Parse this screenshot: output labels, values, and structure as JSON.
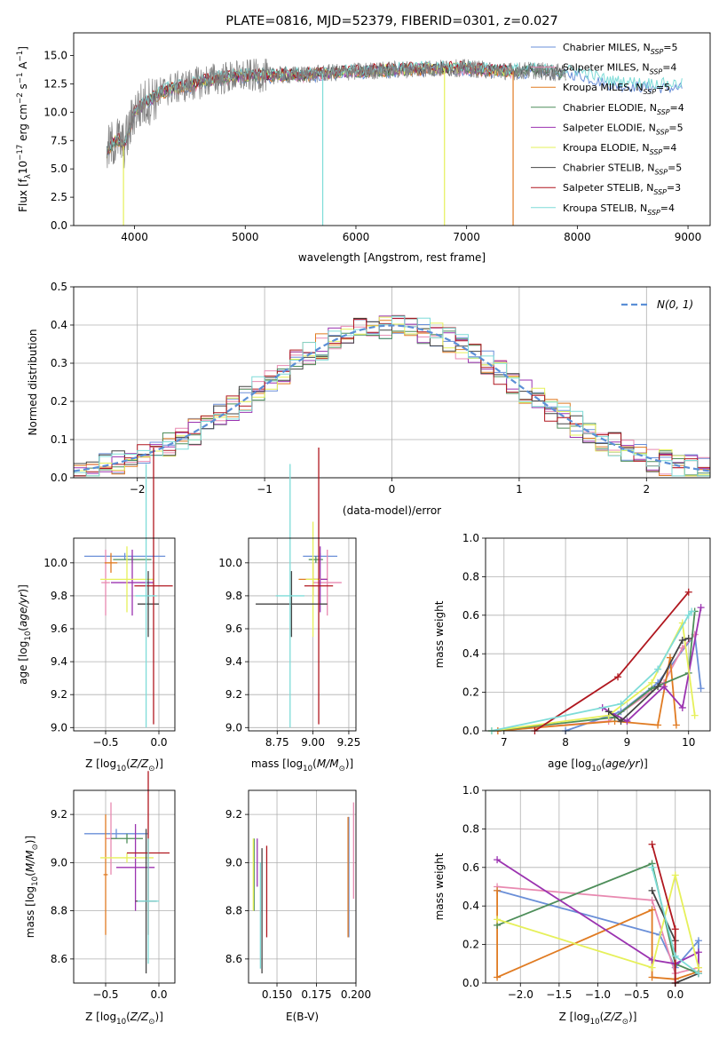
{
  "figure": {
    "title": "PLATE=0816, MJD=52379, FIBERID=0301, z=0.027"
  },
  "colors": {
    "Chabrier MILES": "#6a8fd8",
    "Salpeter MILES": "#e889b0",
    "Kroupa MILES": "#e07b22",
    "Chabrier ELODIE": "#4e8e5a",
    "Salpeter ELODIE": "#9b33b0",
    "Kroupa ELODIE": "#e6f05a",
    "Chabrier STELIB": "#444444",
    "Salpeter STELIB": "#b0171f",
    "Kroupa STELIB": "#7edcd8",
    "grey_data": "#808080",
    "normal_curve": "#5b8fd6"
  },
  "chart_data": [
    {
      "id": "spectrum",
      "type": "line",
      "title": "PLATE=0816, MJD=52379, FIBERID=0301, z=0.027",
      "xlabel": "wavelength [Angstrom, rest frame]",
      "ylabel": "Flux [f_λ 10^-17 erg cm^-2 s^-1 A^-1]",
      "xlim": [
        3450,
        9200
      ],
      "ylim": [
        0,
        17
      ],
      "xticks": [
        4000,
        5000,
        6000,
        7000,
        8000,
        9000
      ],
      "yticks": [
        0.0,
        2.5,
        5.0,
        7.5,
        10.0,
        12.5,
        15.0
      ],
      "legend_position": "upper right",
      "legend": [
        {
          "name": "Chabrier MILES",
          "nssp": 5
        },
        {
          "name": "Salpeter MILES",
          "nssp": 4
        },
        {
          "name": "Kroupa MILES",
          "nssp": 5
        },
        {
          "name": "Chabrier ELODIE",
          "nssp": 4
        },
        {
          "name": "Salpeter ELODIE",
          "nssp": 5
        },
        {
          "name": "Kroupa ELODIE",
          "nssp": 4
        },
        {
          "name": "Chabrier STELIB",
          "nssp": 5
        },
        {
          "name": "Salpeter STELIB",
          "nssp": 3
        },
        {
          "name": "Kroupa STELIB",
          "nssp": 4
        }
      ],
      "continuum": {
        "x": [
          3750,
          3800,
          3850,
          3900,
          3950,
          4000,
          4100,
          4200,
          4300,
          4500,
          4700,
          5000,
          5500,
          6000,
          6500,
          7000,
          7200,
          7400,
          7600,
          7800,
          8000,
          8300,
          8600,
          8900
        ],
        "y": [
          6.5,
          7.2,
          7.6,
          7.0,
          8.3,
          10.1,
          10.8,
          11.5,
          12.0,
          12.4,
          12.9,
          13.2,
          13.3,
          13.6,
          13.8,
          13.9,
          13.7,
          13.6,
          13.7,
          13.5,
          13.5,
          12.6,
          12.4,
          12.3
        ]
      },
      "noisy_range": [
        3750,
        7900
      ],
      "spikes": [
        {
          "x": 3900,
          "y_low": 0.0
        },
        {
          "x": 5700,
          "y_low": 0.0
        },
        {
          "x": 6800,
          "y_low": 0.0
        },
        {
          "x": 7420,
          "y_low": 0.0
        }
      ]
    },
    {
      "id": "residuals",
      "type": "histogram",
      "xlabel": "(data-model)/error",
      "ylabel": "Normed distribution",
      "xlim": [
        -2.5,
        2.5
      ],
      "ylim": [
        0,
        0.5
      ],
      "xticks": [
        -2,
        -1,
        0,
        1,
        2
      ],
      "yticks": [
        0.0,
        0.1,
        0.2,
        0.3,
        0.4,
        0.5
      ],
      "bin_width": 0.1,
      "bins_start": -2.5,
      "normal_curve_label": "N(0, 1)",
      "legend_position": "upper right"
    },
    {
      "id": "age_vs_Z",
      "type": "scatter",
      "xlabel": "Z [log10(Z/Z⊙)]",
      "ylabel": "age  [log10(age/yr)]",
      "xlim": [
        -0.8,
        0.15
      ],
      "ylim": [
        8.98,
        10.15
      ],
      "xticks": [
        -0.5,
        0.0
      ],
      "yticks": [
        9.0,
        9.2,
        9.4,
        9.6,
        9.8,
        10.0
      ],
      "points": [
        {
          "model": "Chabrier MILES",
          "x": -0.32,
          "xerr": 0.38,
          "y": 10.04,
          "yerr": 0.02
        },
        {
          "model": "Salpeter MILES",
          "x": -0.5,
          "xerr": 0.04,
          "y": 9.88,
          "yerr": 0.2
        },
        {
          "model": "Kroupa MILES",
          "x": -0.45,
          "xerr": 0.06,
          "y": 10.0,
          "yerr": 0.06
        },
        {
          "model": "Chabrier ELODIE",
          "x": -0.25,
          "xerr": 0.18,
          "y": 10.02,
          "yerr": 0.02
        },
        {
          "model": "Salpeter ELODIE",
          "x": -0.25,
          "xerr": 0.2,
          "y": 9.88,
          "yerr": 0.2
        },
        {
          "model": "Kroupa ELODIE",
          "x": -0.3,
          "xerr": 0.25,
          "y": 9.9,
          "yerr": 0.2
        },
        {
          "model": "Chabrier STELIB",
          "x": -0.1,
          "xerr": 0.1,
          "y": 9.75,
          "yerr": 0.2
        },
        {
          "model": "Salpeter STELIB",
          "x": -0.05,
          "xerr": 0.18,
          "y": 9.86,
          "yerr": 0.84
        },
        {
          "model": "Kroupa STELIB",
          "x": -0.12,
          "xerr": 0.1,
          "y": 9.8,
          "yerr": 0.8
        }
      ]
    },
    {
      "id": "age_vs_mass",
      "type": "scatter",
      "xlabel": "mass [log10(M/M⊙)]",
      "xlim": [
        8.55,
        9.3
      ],
      "ylim": [
        8.98,
        10.15
      ],
      "xticks": [
        8.75,
        9.0,
        9.25
      ],
      "yticks": [
        9.0,
        9.2,
        9.4,
        9.6,
        9.8,
        10.0
      ],
      "points": [
        {
          "model": "Chabrier MILES",
          "x": 9.05,
          "xerr": 0.12,
          "y": 10.04,
          "yerr": 0.02
        },
        {
          "model": "Salpeter MILES",
          "x": 9.1,
          "xerr": 0.1,
          "y": 9.88,
          "yerr": 0.2
        },
        {
          "model": "Kroupa MILES",
          "x": 9.0,
          "xerr": 0.1,
          "y": 9.9,
          "yerr": 0.1
        },
        {
          "model": "Chabrier ELODIE",
          "x": 9.02,
          "xerr": 0.05,
          "y": 10.02,
          "yerr": 0.02
        },
        {
          "model": "Salpeter ELODIE",
          "x": 9.05,
          "xerr": 0.05,
          "y": 9.9,
          "yerr": 0.2
        },
        {
          "model": "Kroupa ELODIE",
          "x": 9.0,
          "xerr": 0.05,
          "y": 9.9,
          "yerr": 0.35
        },
        {
          "model": "Chabrier STELIB",
          "x": 8.85,
          "xerr": 0.25,
          "y": 9.75,
          "yerr": 0.2
        },
        {
          "model": "Salpeter STELIB",
          "x": 9.04,
          "xerr": 0.1,
          "y": 9.86,
          "yerr": 0.84
        },
        {
          "model": "Kroupa STELIB",
          "x": 8.84,
          "xerr": 0.1,
          "y": 9.8,
          "yerr": 0.8
        }
      ]
    },
    {
      "id": "massweight_vs_age",
      "type": "line",
      "xlabel": "age  [log10(age/yr)]",
      "ylabel": "mass weight",
      "xlim": [
        6.7,
        10.35
      ],
      "ylim": [
        0,
        1.0
      ],
      "xticks": [
        7,
        8,
        9,
        10
      ],
      "yticks": [
        0.0,
        0.2,
        0.4,
        0.6,
        0.8,
        1.0
      ],
      "series": [
        {
          "model": "Chabrier MILES",
          "x": [
            8.0,
            8.9,
            9.5,
            10.1,
            10.2
          ],
          "y": [
            0.0,
            0.1,
            0.25,
            0.5,
            0.22
          ]
        },
        {
          "model": "Salpeter MILES",
          "x": [
            6.9,
            8.7,
            9.6,
            9.9,
            10.1
          ],
          "y": [
            0.0,
            0.05,
            0.25,
            0.43,
            0.5
          ]
        },
        {
          "model": "Kroupa MILES",
          "x": [
            6.9,
            8.8,
            9.5,
            9.7,
            9.8
          ],
          "y": [
            0.0,
            0.05,
            0.03,
            0.38,
            0.03
          ]
        },
        {
          "model": "Chabrier ELODIE",
          "x": [
            6.8,
            8.8,
            9.4,
            10.0,
            10.1
          ],
          "y": [
            0.0,
            0.07,
            0.22,
            0.3,
            0.62
          ]
        },
        {
          "model": "Salpeter ELODIE",
          "x": [
            8.6,
            9.0,
            9.6,
            9.9,
            10.2
          ],
          "y": [
            0.12,
            0.05,
            0.23,
            0.12,
            0.64
          ]
        },
        {
          "model": "Kroupa ELODIE",
          "x": [
            6.8,
            8.7,
            9.4,
            9.9,
            10.1
          ],
          "y": [
            0.0,
            0.08,
            0.25,
            0.56,
            0.08
          ]
        },
        {
          "model": "Chabrier STELIB",
          "x": [
            8.7,
            8.9,
            9.5,
            9.9,
            10.0
          ],
          "y": [
            0.1,
            0.05,
            0.23,
            0.47,
            0.48
          ]
        },
        {
          "model": "Salpeter STELIB",
          "x": [
            7.5,
            8.85,
            10.0
          ],
          "y": [
            0.0,
            0.28,
            0.72
          ]
        },
        {
          "model": "Kroupa STELIB",
          "x": [
            6.8,
            8.9,
            9.5,
            10.0,
            10.05
          ],
          "y": [
            0.0,
            0.14,
            0.32,
            0.6,
            0.62
          ]
        }
      ]
    },
    {
      "id": "mass_vs_Z",
      "type": "scatter",
      "xlabel": "Z [log10(Z/Z⊙)]",
      "ylabel": "mass [log10(M/M⊙)]",
      "xlim": [
        -0.8,
        0.15
      ],
      "ylim": [
        8.5,
        9.3
      ],
      "xticks": [
        -0.5,
        0.0
      ],
      "yticks": [
        8.6,
        8.8,
        9.0,
        9.2
      ],
      "points": [
        {
          "model": "Chabrier MILES",
          "x": -0.4,
          "xerr": 0.3,
          "y": 9.12,
          "yerr": 0.02
        },
        {
          "model": "Salpeter MILES",
          "x": -0.45,
          "xerr": 0.05,
          "y": 9.1,
          "yerr": 0.15
        },
        {
          "model": "Kroupa MILES",
          "x": -0.5,
          "xerr": 0.02,
          "y": 8.95,
          "yerr": 0.25
        },
        {
          "model": "Chabrier ELODIE",
          "x": -0.3,
          "xerr": 0.15,
          "y": 9.1,
          "yerr": 0.02
        },
        {
          "model": "Salpeter ELODIE",
          "x": -0.22,
          "xerr": 0.18,
          "y": 8.98,
          "yerr": 0.18
        },
        {
          "model": "Kroupa ELODIE",
          "x": -0.3,
          "xerr": 0.25,
          "y": 9.02,
          "yerr": 0.02
        },
        {
          "model": "Chabrier STELIB",
          "x": -0.12,
          "xerr": 0.1,
          "y": 8.84,
          "yerr": 0.3
        },
        {
          "model": "Salpeter STELIB",
          "x": -0.1,
          "xerr": 0.2,
          "y": 9.04,
          "yerr": 0.34
        },
        {
          "model": "Kroupa STELIB",
          "x": -0.1,
          "xerr": 0.1,
          "y": 8.84,
          "yerr": 0.26
        }
      ]
    },
    {
      "id": "mass_vs_EBV",
      "type": "scatter",
      "xlabel": "E(B-V)",
      "xlim": [
        0.132,
        0.2
      ],
      "ylim": [
        8.5,
        9.3
      ],
      "xticks": [
        0.15,
        0.175,
        0.2
      ],
      "yticks": [
        8.6,
        8.8,
        9.0,
        9.2
      ],
      "points": [
        {
          "model": "Chabrier MILES",
          "x": 0.1955,
          "y": 8.94,
          "yerr": 0.25
        },
        {
          "model": "Salpeter MILES",
          "x": 0.1985,
          "y": 9.05,
          "yerr": 0.2
        },
        {
          "model": "Kroupa MILES",
          "x": 0.195,
          "y": 8.94,
          "yerr": 0.25
        },
        {
          "model": "Chabrier ELODIE",
          "x": 0.1355,
          "y": 8.95,
          "yerr": 0.15
        },
        {
          "model": "Salpeter ELODIE",
          "x": 0.1375,
          "y": 9.0,
          "yerr": 0.1
        },
        {
          "model": "Kroupa ELODIE",
          "x": 0.135,
          "y": 8.95,
          "yerr": 0.15
        },
        {
          "model": "Chabrier STELIB",
          "x": 0.1405,
          "y": 8.8,
          "yerr": 0.26
        },
        {
          "model": "Salpeter STELIB",
          "x": 0.1435,
          "y": 8.88,
          "yerr": 0.19
        },
        {
          "model": "Kroupa STELIB",
          "x": 0.1395,
          "y": 8.78,
          "yerr": 0.22
        }
      ]
    },
    {
      "id": "massweight_vs_Z",
      "type": "line",
      "xlabel": "Z [log10(Z/Z⊙)]",
      "ylabel": "mass weight",
      "xlim": [
        -2.45,
        0.45
      ],
      "ylim": [
        0,
        1.0
      ],
      "xticks": [
        -2.0,
        -1.5,
        -1.0,
        -0.5,
        0.0
      ],
      "yticks": [
        0.0,
        0.2,
        0.4,
        0.6,
        0.8,
        1.0
      ],
      "series": [
        {
          "model": "Chabrier MILES",
          "x": [
            -2.3,
            -0.2,
            0.0,
            0.3,
            0.3
          ],
          "y": [
            0.48,
            0.25,
            0.08,
            0.22,
            0.05
          ]
        },
        {
          "model": "Salpeter MILES",
          "x": [
            -2.3,
            -0.3,
            0.0,
            0.3
          ],
          "y": [
            0.5,
            0.43,
            0.05,
            0.08
          ]
        },
        {
          "model": "Kroupa MILES",
          "x": [
            -2.3,
            -2.3,
            -0.3,
            -0.3,
            0.0,
            0.3
          ],
          "y": [
            0.48,
            0.03,
            0.38,
            0.03,
            0.02,
            0.06
          ]
        },
        {
          "model": "Chabrier ELODIE",
          "x": [
            -2.3,
            -0.3,
            0.0,
            0.3
          ],
          "y": [
            0.3,
            0.62,
            0.1,
            0.05
          ]
        },
        {
          "model": "Salpeter ELODIE",
          "x": [
            -2.3,
            -0.3,
            0.0,
            0.3,
            0.3
          ],
          "y": [
            0.64,
            0.12,
            0.1,
            0.16,
            0.05
          ]
        },
        {
          "model": "Kroupa ELODIE",
          "x": [
            -2.3,
            -0.3,
            0.0,
            0.3,
            0.3
          ],
          "y": [
            0.33,
            0.08,
            0.56,
            0.08,
            0.05
          ]
        },
        {
          "model": "Chabrier STELIB",
          "x": [
            -0.3,
            0.0,
            0.0,
            0.3
          ],
          "y": [
            0.48,
            0.22,
            0.0,
            0.05
          ]
        },
        {
          "model": "Salpeter STELIB",
          "x": [
            -0.3,
            0.0,
            0.0
          ],
          "y": [
            0.72,
            0.28,
            0.0
          ]
        },
        {
          "model": "Kroupa STELIB",
          "x": [
            -0.3,
            0.0,
            0.3
          ],
          "y": [
            0.6,
            0.14,
            0.05
          ]
        }
      ]
    }
  ]
}
